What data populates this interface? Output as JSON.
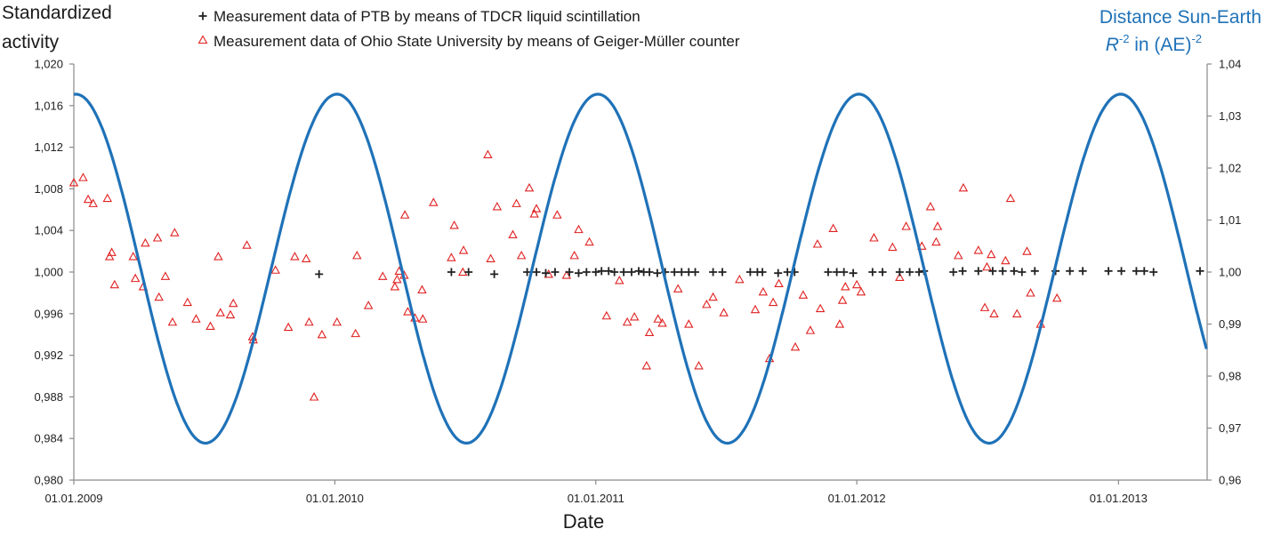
{
  "chart_data": {
    "type": "scatter",
    "ylabel_lines": [
      "Standardized",
      "activity"
    ],
    "xlabel": "Date",
    "y2label_line1": "Distance Sun-Earth",
    "y2label_line2_base": "R",
    "y2label_line2_sup": "-2",
    "y2label_line2_mid": " in (AE)",
    "y2label_line2_sup2": "-2",
    "legend_position": "top",
    "colors": {
      "sun_earth": "#1f72b8",
      "ptb": "#222222",
      "ohio": "#e02020",
      "axis": "#8a8a8a"
    },
    "xlim": [
      "01.01.2009",
      "05.05.2013"
    ],
    "x_ticks": [
      "01.01.2009",
      "01.01.2010",
      "01.01.2011",
      "01.01.2012",
      "01.01.2013"
    ],
    "ylim": [
      0.98,
      1.02
    ],
    "y_ticks": [
      "0,980",
      "0,984",
      "0,988",
      "0,992",
      "0,996",
      "1,000",
      "1,004",
      "1,008",
      "1,012",
      "1,016",
      "1,020"
    ],
    "y2lim": [
      0.96,
      1.04
    ],
    "y2_ticks": [
      "0,96",
      "0,97",
      "0,98",
      "0,99",
      "1,00",
      "1,01",
      "1,02",
      "1,03",
      "1,04"
    ],
    "series": [
      {
        "name": "Measurement data of PTB by means of TDCR liquid scintillation",
        "marker": "plus",
        "points": [
          {
            "x": "2009-12-10",
            "y": 0.9998
          },
          {
            "x": "2010-06-13",
            "y": 1.0
          },
          {
            "x": "2010-07-07",
            "y": 1.0
          },
          {
            "x": "2010-08-12",
            "y": 0.9998
          },
          {
            "x": "2010-09-27",
            "y": 1.0
          },
          {
            "x": "2010-10-10",
            "y": 1.0
          },
          {
            "x": "2010-10-23",
            "y": 0.9999
          },
          {
            "x": "2010-11-05",
            "y": 1.0
          },
          {
            "x": "2010-11-25",
            "y": 1.0
          },
          {
            "x": "2010-12-08",
            "y": 0.9999
          },
          {
            "x": "2010-12-19",
            "y": 1.0
          },
          {
            "x": "2011-01-01",
            "y": 1.0
          },
          {
            "x": "2011-01-09",
            "y": 1.0001
          },
          {
            "x": "2011-01-19",
            "y": 1.0001
          },
          {
            "x": "2011-01-27",
            "y": 1.0
          },
          {
            "x": "2011-02-09",
            "y": 1.0
          },
          {
            "x": "2011-02-20",
            "y": 1.0
          },
          {
            "x": "2011-03-02",
            "y": 1.0001
          },
          {
            "x": "2011-03-09",
            "y": 1.0
          },
          {
            "x": "2011-03-17",
            "y": 1.0
          },
          {
            "x": "2011-03-28",
            "y": 0.9999
          },
          {
            "x": "2011-04-08",
            "y": 1.0
          },
          {
            "x": "2011-04-21",
            "y": 1.0
          },
          {
            "x": "2011-05-01",
            "y": 1.0
          },
          {
            "x": "2011-05-11",
            "y": 1.0
          },
          {
            "x": "2011-05-20",
            "y": 1.0
          },
          {
            "x": "2011-06-14",
            "y": 1.0
          },
          {
            "x": "2011-06-27",
            "y": 1.0
          },
          {
            "x": "2011-08-05",
            "y": 1.0
          },
          {
            "x": "2011-08-15",
            "y": 1.0
          },
          {
            "x": "2011-08-22",
            "y": 1.0
          },
          {
            "x": "2011-09-13",
            "y": 0.9999
          },
          {
            "x": "2011-09-26",
            "y": 1.0
          },
          {
            "x": "2011-10-06",
            "y": 1.0
          },
          {
            "x": "2011-11-22",
            "y": 1.0
          },
          {
            "x": "2011-12-04",
            "y": 1.0
          },
          {
            "x": "2011-12-14",
            "y": 1.0
          },
          {
            "x": "2011-12-27",
            "y": 0.9999
          },
          {
            "x": "2012-01-23",
            "y": 1.0
          },
          {
            "x": "2012-02-06",
            "y": 1.0
          },
          {
            "x": "2012-03-01",
            "y": 1.0
          },
          {
            "x": "2012-03-15",
            "y": 1.0
          },
          {
            "x": "2012-03-28",
            "y": 1.0
          },
          {
            "x": "2012-04-04",
            "y": 1.0001
          },
          {
            "x": "2012-05-15",
            "y": 1.0
          },
          {
            "x": "2012-05-28",
            "y": 1.0001
          },
          {
            "x": "2012-06-19",
            "y": 1.0001
          },
          {
            "x": "2012-07-09",
            "y": 1.0001
          },
          {
            "x": "2012-07-23",
            "y": 1.0001
          },
          {
            "x": "2012-08-08",
            "y": 1.0001
          },
          {
            "x": "2012-08-19",
            "y": 1.0
          },
          {
            "x": "2012-09-06",
            "y": 1.0001
          },
          {
            "x": "2012-10-05",
            "y": 1.0001
          },
          {
            "x": "2012-10-25",
            "y": 1.0001
          },
          {
            "x": "2012-11-12",
            "y": 1.0001
          },
          {
            "x": "2012-12-18",
            "y": 1.0001
          },
          {
            "x": "2013-01-05",
            "y": 1.0001
          },
          {
            "x": "2013-01-26",
            "y": 1.0001
          },
          {
            "x": "2013-02-06",
            "y": 1.0001
          },
          {
            "x": "2013-02-19",
            "y": 1.0
          },
          {
            "x": "2013-04-25",
            "y": 1.0001
          }
        ]
      },
      {
        "name": "Measurement data of Ohio State University by means of Geiger-Müller counter",
        "marker": "triangle",
        "points": [
          {
            "x": "2009-01-01",
            "y": 1.0086
          },
          {
            "x": "2009-01-14",
            "y": 1.0091
          },
          {
            "x": "2009-01-21",
            "y": 1.007
          },
          {
            "x": "2009-01-28",
            "y": 1.0066
          },
          {
            "x": "2009-02-17",
            "y": 1.0071
          },
          {
            "x": "2009-02-20",
            "y": 1.0015
          },
          {
            "x": "2009-02-23",
            "y": 1.0019
          },
          {
            "x": "2009-02-27",
            "y": 0.9988
          },
          {
            "x": "2009-03-25",
            "y": 1.0015
          },
          {
            "x": "2009-03-28",
            "y": 0.9994
          },
          {
            "x": "2009-04-08",
            "y": 0.9986
          },
          {
            "x": "2009-04-11",
            "y": 1.0028
          },
          {
            "x": "2009-04-28",
            "y": 1.0033
          },
          {
            "x": "2009-04-30",
            "y": 0.9976
          },
          {
            "x": "2009-05-09",
            "y": 0.9996
          },
          {
            "x": "2009-05-19",
            "y": 0.9952
          },
          {
            "x": "2009-05-22",
            "y": 1.0038
          },
          {
            "x": "2009-06-09",
            "y": 0.9971
          },
          {
            "x": "2009-06-21",
            "y": 0.9955
          },
          {
            "x": "2009-07-11",
            "y": 0.9948
          },
          {
            "x": "2009-07-22",
            "y": 1.0015
          },
          {
            "x": "2009-07-25",
            "y": 0.9961
          },
          {
            "x": "2009-08-08",
            "y": 0.9959
          },
          {
            "x": "2009-08-12",
            "y": 0.997
          },
          {
            "x": "2009-08-31",
            "y": 1.0026
          },
          {
            "x": "2009-09-08",
            "y": 0.9938
          },
          {
            "x": "2009-09-09",
            "y": 0.9935
          },
          {
            "x": "2009-10-10",
            "y": 1.0002
          },
          {
            "x": "2009-10-28",
            "y": 0.9947
          },
          {
            "x": "2009-11-06",
            "y": 1.0015
          },
          {
            "x": "2009-11-22",
            "y": 1.0013
          },
          {
            "x": "2009-11-26",
            "y": 0.9952
          },
          {
            "x": "2009-12-03",
            "y": 0.988
          },
          {
            "x": "2009-12-14",
            "y": 0.994
          },
          {
            "x": "2010-01-04",
            "y": 0.9952
          },
          {
            "x": "2010-01-30",
            "y": 0.9941
          },
          {
            "x": "2010-02-01",
            "y": 1.0016
          },
          {
            "x": "2010-02-17",
            "y": 0.9968
          },
          {
            "x": "2010-03-09",
            "y": 0.9996
          },
          {
            "x": "2010-03-26",
            "y": 0.9986
          },
          {
            "x": "2010-03-29",
            "y": 0.9993
          },
          {
            "x": "2010-04-01",
            "y": 1.0001
          },
          {
            "x": "2010-04-08",
            "y": 0.9997
          },
          {
            "x": "2010-04-09",
            "y": 1.0055
          },
          {
            "x": "2010-04-13",
            "y": 0.9962
          },
          {
            "x": "2010-04-23",
            "y": 0.9956
          },
          {
            "x": "2010-05-03",
            "y": 0.9983
          },
          {
            "x": "2010-05-04",
            "y": 0.9955
          },
          {
            "x": "2010-05-19",
            "y": 1.0067
          },
          {
            "x": "2010-06-13",
            "y": 1.0014
          },
          {
            "x": "2010-06-17",
            "y": 1.0045
          },
          {
            "x": "2010-06-29",
            "y": 1.0
          },
          {
            "x": "2010-06-30",
            "y": 1.0021
          },
          {
            "x": "2010-08-03",
            "y": 1.0113
          },
          {
            "x": "2010-08-07",
            "y": 1.0013
          },
          {
            "x": "2010-08-16",
            "y": 1.0063
          },
          {
            "x": "2010-09-07",
            "y": 1.0036
          },
          {
            "x": "2010-09-12",
            "y": 1.0066
          },
          {
            "x": "2010-09-19",
            "y": 1.0016
          },
          {
            "x": "2010-09-30",
            "y": 1.0081
          },
          {
            "x": "2010-10-07",
            "y": 1.0056
          },
          {
            "x": "2010-10-10",
            "y": 1.0061
          },
          {
            "x": "2010-10-27",
            "y": 0.9998
          },
          {
            "x": "2010-11-08",
            "y": 1.0055
          },
          {
            "x": "2010-11-21",
            "y": 0.9997
          },
          {
            "x": "2010-12-02",
            "y": 1.0016
          },
          {
            "x": "2010-12-08",
            "y": 1.0041
          },
          {
            "x": "2010-12-23",
            "y": 1.0029
          },
          {
            "x": "2011-01-16",
            "y": 0.9958
          },
          {
            "x": "2011-02-03",
            "y": 0.9992
          },
          {
            "x": "2011-02-14",
            "y": 0.9952
          },
          {
            "x": "2011-02-24",
            "y": 0.9957
          },
          {
            "x": "2011-03-13",
            "y": 0.991
          },
          {
            "x": "2011-03-17",
            "y": 0.9942
          },
          {
            "x": "2011-03-29",
            "y": 0.9955
          },
          {
            "x": "2011-04-04",
            "y": 0.9951
          },
          {
            "x": "2011-04-26",
            "y": 0.9984
          },
          {
            "x": "2011-05-11",
            "y": 0.995
          },
          {
            "x": "2011-05-25",
            "y": 0.991
          },
          {
            "x": "2011-06-05",
            "y": 0.9969
          },
          {
            "x": "2011-06-14",
            "y": 0.9976
          },
          {
            "x": "2011-06-29",
            "y": 0.9961
          },
          {
            "x": "2011-07-21",
            "y": 0.9993
          },
          {
            "x": "2011-08-12",
            "y": 0.9964
          },
          {
            "x": "2011-08-23",
            "y": 0.9981
          },
          {
            "x": "2011-09-01",
            "y": 0.9917
          },
          {
            "x": "2011-09-06",
            "y": 0.9971
          },
          {
            "x": "2011-09-14",
            "y": 0.9989
          },
          {
            "x": "2011-10-07",
            "y": 0.9928
          },
          {
            "x": "2011-10-18",
            "y": 0.9978
          },
          {
            "x": "2011-10-28",
            "y": 0.9944
          },
          {
            "x": "2011-11-07",
            "y": 1.0027
          },
          {
            "x": "2011-11-11",
            "y": 0.9965
          },
          {
            "x": "2011-11-29",
            "y": 1.0042
          },
          {
            "x": "2011-12-08",
            "y": 0.995
          },
          {
            "x": "2011-12-12",
            "y": 0.9973
          },
          {
            "x": "2011-12-16",
            "y": 0.9986
          },
          {
            "x": "2012-01-01",
            "y": 0.9988
          },
          {
            "x": "2012-01-07",
            "y": 0.9981
          },
          {
            "x": "2012-01-25",
            "y": 1.0033
          },
          {
            "x": "2012-02-20",
            "y": 1.0024
          },
          {
            "x": "2012-03-01",
            "y": 0.9995
          },
          {
            "x": "2012-03-10",
            "y": 1.0044
          },
          {
            "x": "2012-04-01",
            "y": 1.0025
          },
          {
            "x": "2012-04-13",
            "y": 1.0063
          },
          {
            "x": "2012-04-21",
            "y": 1.0029
          },
          {
            "x": "2012-04-23",
            "y": 1.0044
          },
          {
            "x": "2012-05-22",
            "y": 1.0016
          },
          {
            "x": "2012-05-29",
            "y": 1.0081
          },
          {
            "x": "2012-06-19",
            "y": 1.0021
          },
          {
            "x": "2012-06-28",
            "y": 0.9966
          },
          {
            "x": "2012-07-01",
            "y": 1.0005
          },
          {
            "x": "2012-07-07",
            "y": 1.0017
          },
          {
            "x": "2012-07-11",
            "y": 0.996
          },
          {
            "x": "2012-07-27",
            "y": 1.0011
          },
          {
            "x": "2012-08-03",
            "y": 1.0071
          },
          {
            "x": "2012-08-12",
            "y": 0.996
          },
          {
            "x": "2012-08-26",
            "y": 1.002
          },
          {
            "x": "2012-08-31",
            "y": 0.998
          },
          {
            "x": "2012-09-14",
            "y": 0.995
          },
          {
            "x": "2012-10-07",
            "y": 0.9975
          }
        ]
      },
      {
        "name": "Distance Sun-Earth",
        "type": "line",
        "axis": "right",
        "x": [
          "2009-01-04",
          "2009-07-04",
          "2010-01-04",
          "2010-07-04",
          "2011-01-04",
          "2011-07-04",
          "2012-01-04",
          "2012-07-04",
          "2013-01-04",
          "2013-05-05"
        ],
        "y": [
          1.0342,
          0.9671,
          1.0342,
          0.9671,
          1.0342,
          0.9671,
          1.0342,
          0.9671,
          1.0342,
          0.9815
        ]
      }
    ]
  }
}
